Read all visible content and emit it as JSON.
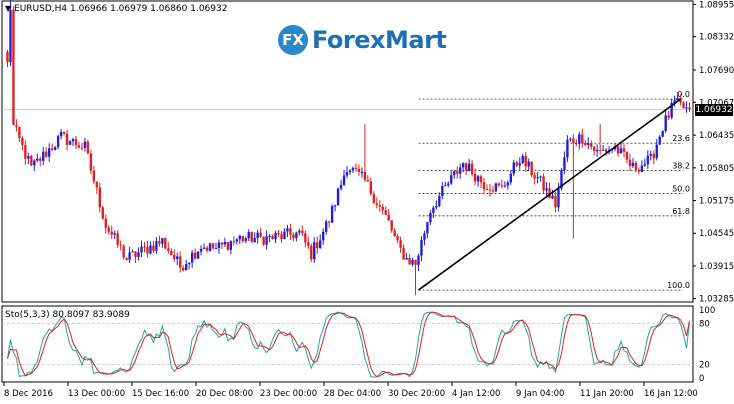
{
  "header": {
    "symbol_line": "EURUSD,H4  1.06966 1.06979 1.06860 1.06932",
    "indicator_line": "Sto(5,3,3) 80.8097 83.9089"
  },
  "brand": {
    "mark": "FX",
    "name": "ForexMart"
  },
  "last_price": "1.06932",
  "colors": {
    "bull": "#1f1fdb",
    "bear": "#e02020",
    "sto_main": "#1aa7a7",
    "sto_signal": "#e02020",
    "axis": "#000000",
    "fib": "#000000",
    "price_line": "#c0c0c0",
    "level_line": "#c0c0c0"
  },
  "chart_data": [
    {
      "type": "candlestick",
      "title": "EURUSD,H4",
      "ohlc_header": [
        1.06966,
        1.06979,
        1.0686,
        1.06932
      ],
      "x_tick_labels": [
        "8 Dec 2016",
        "13 Dec 00:00",
        "15 Dec 16:00",
        "20 Dec 08:00",
        "23 Dec 00:00",
        "28 Dec 04:00",
        "30 Dec 20:00",
        "4 Jan 12:00",
        "9 Jan 04:00",
        "11 Jan 20:00",
        "16 Jan 12:00"
      ],
      "y_tick_labels": [
        "1.08955",
        "1.08332",
        "1.07690",
        "1.07067",
        "1.06435",
        "1.05805",
        "1.05175",
        "1.04545",
        "1.03915",
        "1.03285"
      ],
      "ylim": [
        1.0322,
        1.0902
      ],
      "grid": false,
      "last_price": 1.06932,
      "anchors": [
        {
          "bar": 0,
          "price": 1.078
        },
        {
          "bar": 1,
          "price": 1.089
        },
        {
          "bar": 2,
          "price": 1.066
        },
        {
          "bar": 8,
          "price": 1.058
        },
        {
          "bar": 18,
          "price": 1.064
        },
        {
          "bar": 26,
          "price": 1.062
        },
        {
          "bar": 33,
          "price": 1.047
        },
        {
          "bar": 40,
          "price": 1.0405
        },
        {
          "bar": 52,
          "price": 1.044
        },
        {
          "bar": 58,
          "price": 1.039
        },
        {
          "bar": 65,
          "price": 1.043
        },
        {
          "bar": 70,
          "price": 1.0425
        },
        {
          "bar": 78,
          "price": 1.0445
        },
        {
          "bar": 88,
          "price": 1.0445
        },
        {
          "bar": 98,
          "price": 1.0455
        },
        {
          "bar": 102,
          "price": 1.0415
        },
        {
          "bar": 108,
          "price": 1.048
        },
        {
          "bar": 114,
          "price": 1.0585
        },
        {
          "bar": 120,
          "price": 1.0555
        },
        {
          "bar": 128,
          "price": 1.0475
        },
        {
          "bar": 131,
          "price": 1.043
        },
        {
          "bar": 134,
          "price": 1.0405
        },
        {
          "bar": 137,
          "price": 1.0395
        },
        {
          "bar": 142,
          "price": 1.05
        },
        {
          "bar": 148,
          "price": 1.055
        },
        {
          "bar": 153,
          "price": 1.059
        },
        {
          "bar": 160,
          "price": 1.055
        },
        {
          "bar": 166,
          "price": 1.054
        },
        {
          "bar": 172,
          "price": 1.06
        },
        {
          "bar": 178,
          "price": 1.056
        },
        {
          "bar": 184,
          "price": 1.051
        },
        {
          "bar": 188,
          "price": 1.063
        },
        {
          "bar": 193,
          "price": 1.064
        },
        {
          "bar": 198,
          "price": 1.061
        },
        {
          "bar": 204,
          "price": 1.062
        },
        {
          "bar": 210,
          "price": 1.058
        },
        {
          "bar": 216,
          "price": 1.0595
        },
        {
          "bar": 220,
          "price": 1.066
        },
        {
          "bar": 224,
          "price": 1.0705
        },
        {
          "bar": 228,
          "price": 1.0693
        }
      ],
      "spikes": [
        {
          "bar": 1,
          "high": 1.0905
        },
        {
          "bar": 120,
          "high": 1.0665
        },
        {
          "bar": 137,
          "low": 1.0335
        },
        {
          "bar": 190,
          "low": 1.0445
        },
        {
          "bar": 199,
          "high": 1.0665
        }
      ],
      "fibonacci": {
        "levels": [
          {
            "label": "0.0",
            "price": 1.0713
          },
          {
            "label": "23.6",
            "price": 1.0628
          },
          {
            "label": "38.2",
            "price": 1.0575
          },
          {
            "label": "50.0",
            "price": 1.0531
          },
          {
            "label": "61.8",
            "price": 1.0488
          },
          {
            "label": "100.0",
            "price": 1.0345
          }
        ],
        "trend_from": {
          "bar": 138,
          "price": 1.0345
        },
        "trend_to": {
          "bar": 226,
          "price": 1.0713
        },
        "start_bar": 138
      },
      "indicator": {
        "name": "Sto(5,3,3)",
        "main": 80.8097,
        "signal": 83.9089,
        "levels": [
          20,
          80
        ],
        "ylim": [
          0,
          100
        ],
        "y_tick_labels": [
          "100",
          "80",
          "20",
          "0"
        ]
      }
    }
  ]
}
